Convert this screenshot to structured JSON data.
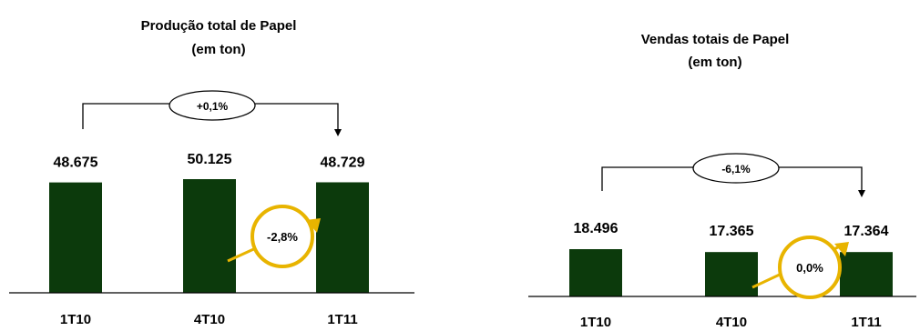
{
  "colors": {
    "bar": "#0c3a0c",
    "axis": "#000000",
    "accent": "#e8b400"
  },
  "chart_data": [
    {
      "type": "bar",
      "title": "Produção total de Papel",
      "subtitle": "(em ton)",
      "categories": [
        "1T10",
        "4T10",
        "1T11"
      ],
      "values": [
        48675,
        50125,
        48729
      ],
      "value_labels": [
        "48.675",
        "50.125",
        "48.729"
      ],
      "ylim": [
        0,
        50125
      ],
      "grid": false,
      "annotations": {
        "overall_change": "+0,1%",
        "qoq_change": "-2,8%"
      }
    },
    {
      "type": "bar",
      "title": "Vendas totais de Papel",
      "subtitle": "(em ton)",
      "categories": [
        "1T10",
        "4T10",
        "1T11"
      ],
      "values": [
        18496,
        17365,
        17364
      ],
      "value_labels": [
        "18.496",
        "17.365",
        "17.364"
      ],
      "ylim": [
        0,
        18496
      ],
      "grid": false,
      "annotations": {
        "overall_change": "-6,1%",
        "qoq_change": "0,0%"
      }
    }
  ]
}
